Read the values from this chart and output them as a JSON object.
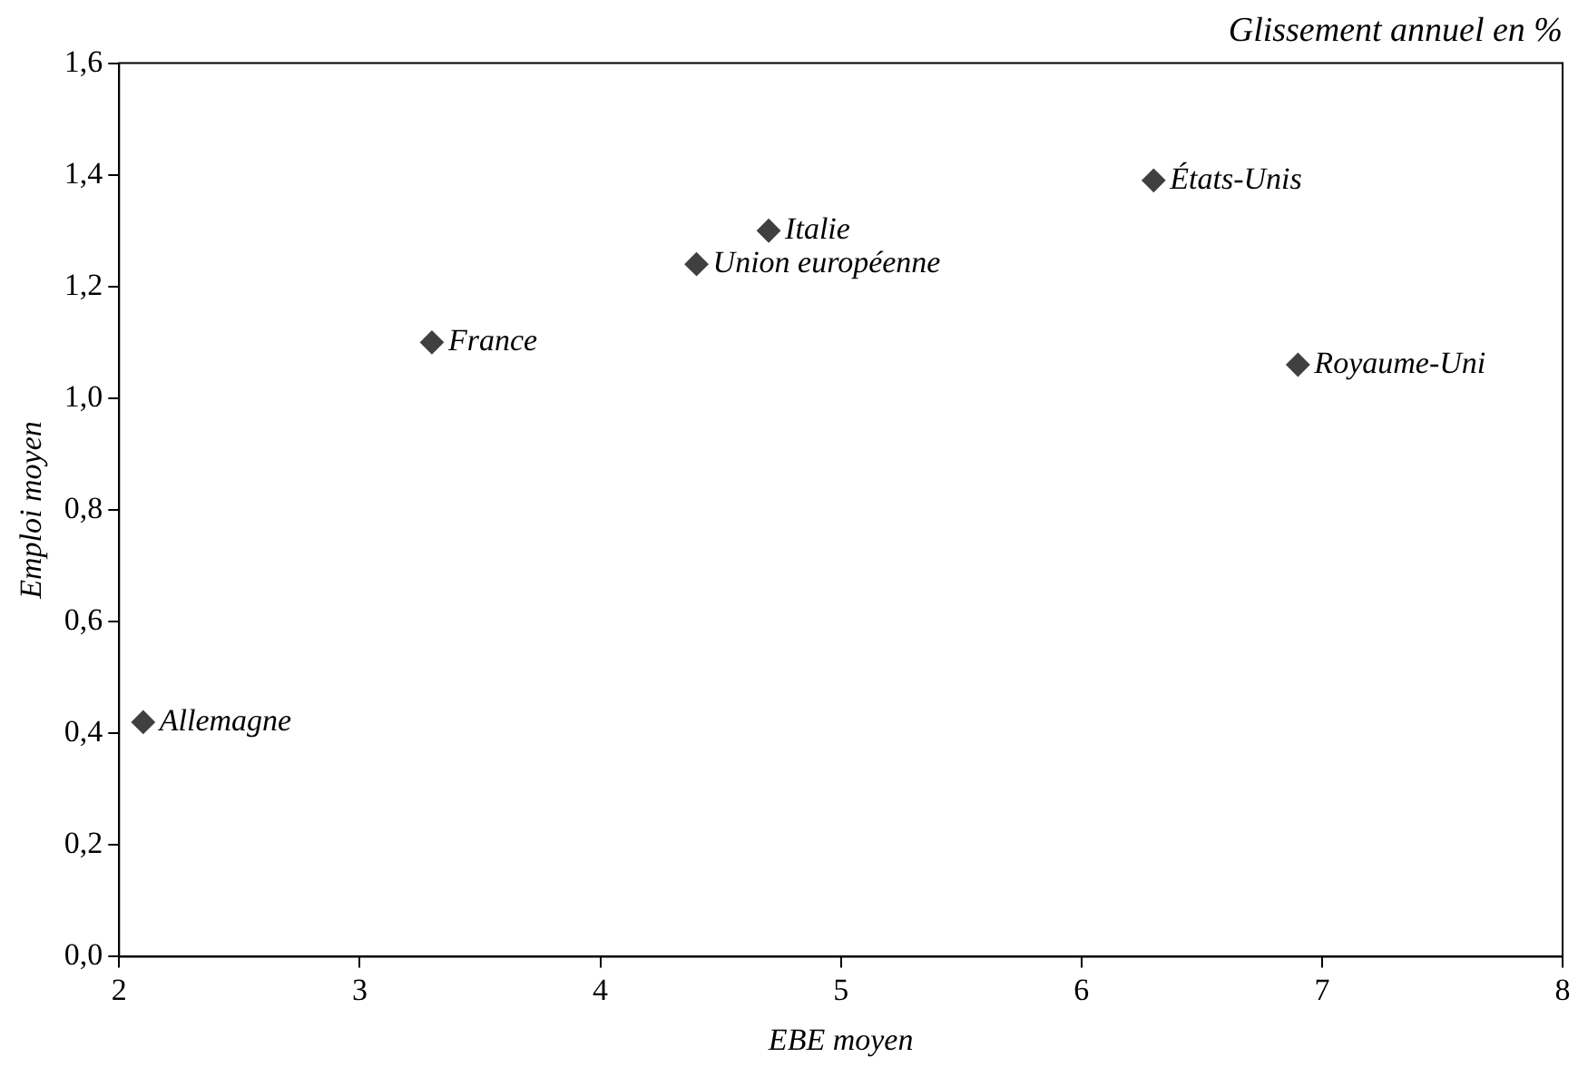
{
  "chart_data": {
    "type": "scatter",
    "title": "Glissement annuel en %",
    "xlabel": "EBE moyen",
    "ylabel": "Emploi moyen",
    "series": [
      {
        "color": "#404040",
        "x": [
          2.1,
          3.3,
          4.4,
          4.7,
          6.3,
          6.9
        ],
        "values": [
          0.42,
          1.1,
          1.24,
          1.3,
          1.39,
          1.06
        ]
      }
    ],
    "annotations": [
      {
        "text": "Allemagne",
        "x": 2.1,
        "y": 0.42
      },
      {
        "text": "France",
        "x": 3.3,
        "y": 1.1
      },
      {
        "text": "Union européenne",
        "x": 4.4,
        "y": 1.24
      },
      {
        "text": "Italie",
        "x": 4.7,
        "y": 1.3
      },
      {
        "text": "États-Unis",
        "x": 6.3,
        "y": 1.39
      },
      {
        "text": "Royaume-Uni",
        "x": 6.9,
        "y": 1.06
      }
    ],
    "xlim": [
      2,
      8
    ],
    "xticks": [
      2,
      3,
      4,
      5,
      6,
      7,
      8
    ],
    "ylim": [
      0,
      1.6
    ],
    "yticks": [
      {
        "value": 0,
        "label": "0,0"
      },
      {
        "value": 0.2,
        "label": "0,2"
      },
      {
        "value": 0.4,
        "label": "0,4"
      },
      {
        "value": 0.6,
        "label": "0,6"
      },
      {
        "value": 0.8,
        "label": "0,8"
      },
      {
        "value": 1,
        "label": "1,0"
      },
      {
        "value": 1.2,
        "label": "1,2"
      },
      {
        "value": 1.4,
        "label": "1,4"
      },
      {
        "value": 1.6,
        "label": "1,6"
      }
    ],
    "grid": false,
    "legend": false,
    "marker": "diamond"
  }
}
